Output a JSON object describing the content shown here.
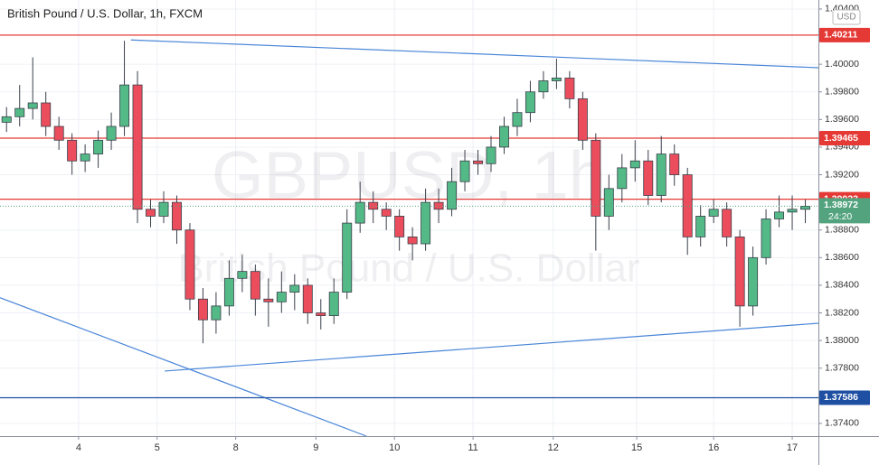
{
  "chart_data": {
    "type": "candlestick",
    "title": "British Pound / U.S. Dollar, 1h, FXCM",
    "watermark_symbol": "GBPUSD, 1h",
    "watermark_name": "British Pound / U.S. Dollar",
    "currency": "USD",
    "x": [
      2,
      6,
      10,
      14,
      18,
      22,
      26,
      30,
      34,
      38,
      42,
      46,
      50,
      54,
      58,
      62,
      66,
      70,
      74,
      78,
      82,
      86,
      90,
      94,
      98,
      102,
      106,
      110,
      114,
      118,
      122,
      126,
      130,
      134,
      138,
      142,
      146,
      150,
      154,
      158,
      162,
      166,
      170,
      174,
      178,
      182,
      186,
      190,
      194,
      198,
      202,
      206,
      210,
      214,
      218,
      222,
      226,
      230,
      234,
      238,
      242,
      246
    ],
    "open": [
      1.3958,
      1.3962,
      1.3968,
      1.3972,
      1.3955,
      1.3945,
      1.393,
      1.3935,
      1.3945,
      1.3955,
      1.3985,
      1.3895,
      1.389,
      1.39,
      1.388,
      1.383,
      1.3815,
      1.3825,
      1.3845,
      1.385,
      1.383,
      1.3828,
      1.3835,
      1.384,
      1.382,
      1.3818,
      1.3835,
      1.3885,
      1.39,
      1.3895,
      1.389,
      1.3875,
      1.387,
      1.39,
      1.3895,
      1.3915,
      1.393,
      1.3928,
      1.394,
      1.3955,
      1.3965,
      1.398,
      1.3988,
      1.399,
      1.3975,
      1.3945,
      1.389,
      1.391,
      1.3925,
      1.393,
      1.3905,
      1.3935,
      1.392,
      1.3875,
      1.389,
      1.3895,
      1.3875,
      1.3825,
      1.386,
      1.3888,
      1.3893,
      1.3895
    ],
    "high": [
      1.3969,
      1.3985,
      1.4005,
      1.398,
      1.3962,
      1.395,
      1.3942,
      1.3952,
      1.3965,
      1.4017,
      1.3995,
      1.3902,
      1.3908,
      1.3905,
      1.3885,
      1.3838,
      1.3835,
      1.3858,
      1.3862,
      1.3855,
      1.3845,
      1.385,
      1.3848,
      1.3845,
      1.383,
      1.3845,
      1.3895,
      1.3915,
      1.3908,
      1.39,
      1.3895,
      1.3882,
      1.391,
      1.391,
      1.3925,
      1.3938,
      1.3938,
      1.3948,
      1.3962,
      1.3975,
      1.3988,
      1.3995,
      1.4004,
      1.3995,
      1.398,
      1.395,
      1.392,
      1.3935,
      1.3945,
      1.3938,
      1.3948,
      1.3942,
      1.3925,
      1.3898,
      1.3902,
      1.39,
      1.388,
      1.3868,
      1.3895,
      1.3905,
      1.3905,
      1.3902
    ],
    "low": [
      1.3951,
      1.3955,
      1.396,
      1.3948,
      1.3938,
      1.392,
      1.3922,
      1.3925,
      1.3938,
      1.3948,
      1.3885,
      1.3882,
      1.3885,
      1.387,
      1.3822,
      1.3798,
      1.3805,
      1.3818,
      1.3835,
      1.3818,
      1.381,
      1.382,
      1.3822,
      1.3812,
      1.3808,
      1.3812,
      1.383,
      1.3878,
      1.3885,
      1.388,
      1.3865,
      1.3858,
      1.3865,
      1.3885,
      1.389,
      1.3908,
      1.392,
      1.3922,
      1.3935,
      1.3948,
      1.3958,
      1.3975,
      1.3982,
      1.3968,
      1.3938,
      1.3865,
      1.388,
      1.39,
      1.3915,
      1.3898,
      1.39,
      1.3912,
      1.3862,
      1.3868,
      1.3885,
      1.3868,
      1.381,
      1.3818,
      1.3855,
      1.3882,
      1.388,
      1.3885
    ],
    "close": [
      1.3962,
      1.3968,
      1.3972,
      1.3955,
      1.3945,
      1.393,
      1.3935,
      1.3945,
      1.3955,
      1.3985,
      1.3895,
      1.389,
      1.39,
      1.388,
      1.383,
      1.3815,
      1.3825,
      1.3845,
      1.385,
      1.383,
      1.3828,
      1.3835,
      1.384,
      1.382,
      1.3818,
      1.3835,
      1.3885,
      1.39,
      1.3895,
      1.389,
      1.3875,
      1.387,
      1.39,
      1.3895,
      1.3915,
      1.393,
      1.3928,
      1.394,
      1.3955,
      1.3965,
      1.398,
      1.3988,
      1.399,
      1.3975,
      1.3945,
      1.389,
      1.391,
      1.3925,
      1.393,
      1.3905,
      1.3935,
      1.392,
      1.3875,
      1.389,
      1.3895,
      1.3875,
      1.3825,
      1.386,
      1.3888,
      1.3893,
      1.3895,
      1.38972
    ],
    "up_color": "#53b987",
    "down_color": "#eb4d5c",
    "xlim": [
      0,
      250
    ],
    "xticks": [
      {
        "value": 24,
        "label": "4"
      },
      {
        "value": 48,
        "label": "5"
      },
      {
        "value": 72,
        "label": "8"
      },
      {
        "value": 96.5,
        "label": "9"
      },
      {
        "value": 120.5,
        "label": "10"
      },
      {
        "value": 144.5,
        "label": "11"
      },
      {
        "value": 169,
        "label": "12"
      },
      {
        "value": 194.5,
        "label": "15"
      },
      {
        "value": 218,
        "label": "16"
      },
      {
        "value": 242,
        "label": "17"
      }
    ],
    "ylim": [
      1.37308,
      1.40465
    ],
    "yticks": [
      {
        "value": 1.404,
        "label": "1.40400"
      },
      {
        "value": 1.4,
        "label": "1.40000"
      },
      {
        "value": 1.398,
        "label": "1.39800"
      },
      {
        "value": 1.396,
        "label": "1.39600"
      },
      {
        "value": 1.394,
        "label": "1.39400"
      },
      {
        "value": 1.392,
        "label": "1.39200"
      },
      {
        "value": 1.388,
        "label": "1.38800"
      },
      {
        "value": 1.386,
        "label": "1.38600"
      },
      {
        "value": 1.384,
        "label": "1.38400"
      },
      {
        "value": 1.382,
        "label": "1.38200"
      },
      {
        "value": 1.38,
        "label": "1.38000"
      },
      {
        "value": 1.378,
        "label": "1.37800"
      },
      {
        "value": 1.374,
        "label": "1.37400"
      }
    ],
    "grid": true,
    "levels": [
      {
        "value": 1.40211,
        "color": "#e53935"
      },
      {
        "value": 1.39465,
        "color": "#e53935"
      },
      {
        "value": 1.39023,
        "color": "#e53935"
      },
      {
        "value": 1.37586,
        "color": "#1e4fa3"
      }
    ],
    "current": {
      "value": 1.38972,
      "countdown": "24:20",
      "color": "#53a37f"
    },
    "trend_lines": [
      {
        "x": [
          40,
          250
        ],
        "y": [
          1.40176,
          1.39975
        ],
        "color": "#4a86d8"
      },
      {
        "x": [
          50.3,
          250
        ],
        "y": [
          1.37779,
          1.38125
        ],
        "color": "#4a86d8"
      },
      {
        "x": [
          0,
          111.9
        ],
        "y": [
          1.3831,
          1.37308
        ],
        "color": "#4a86d8"
      }
    ]
  }
}
